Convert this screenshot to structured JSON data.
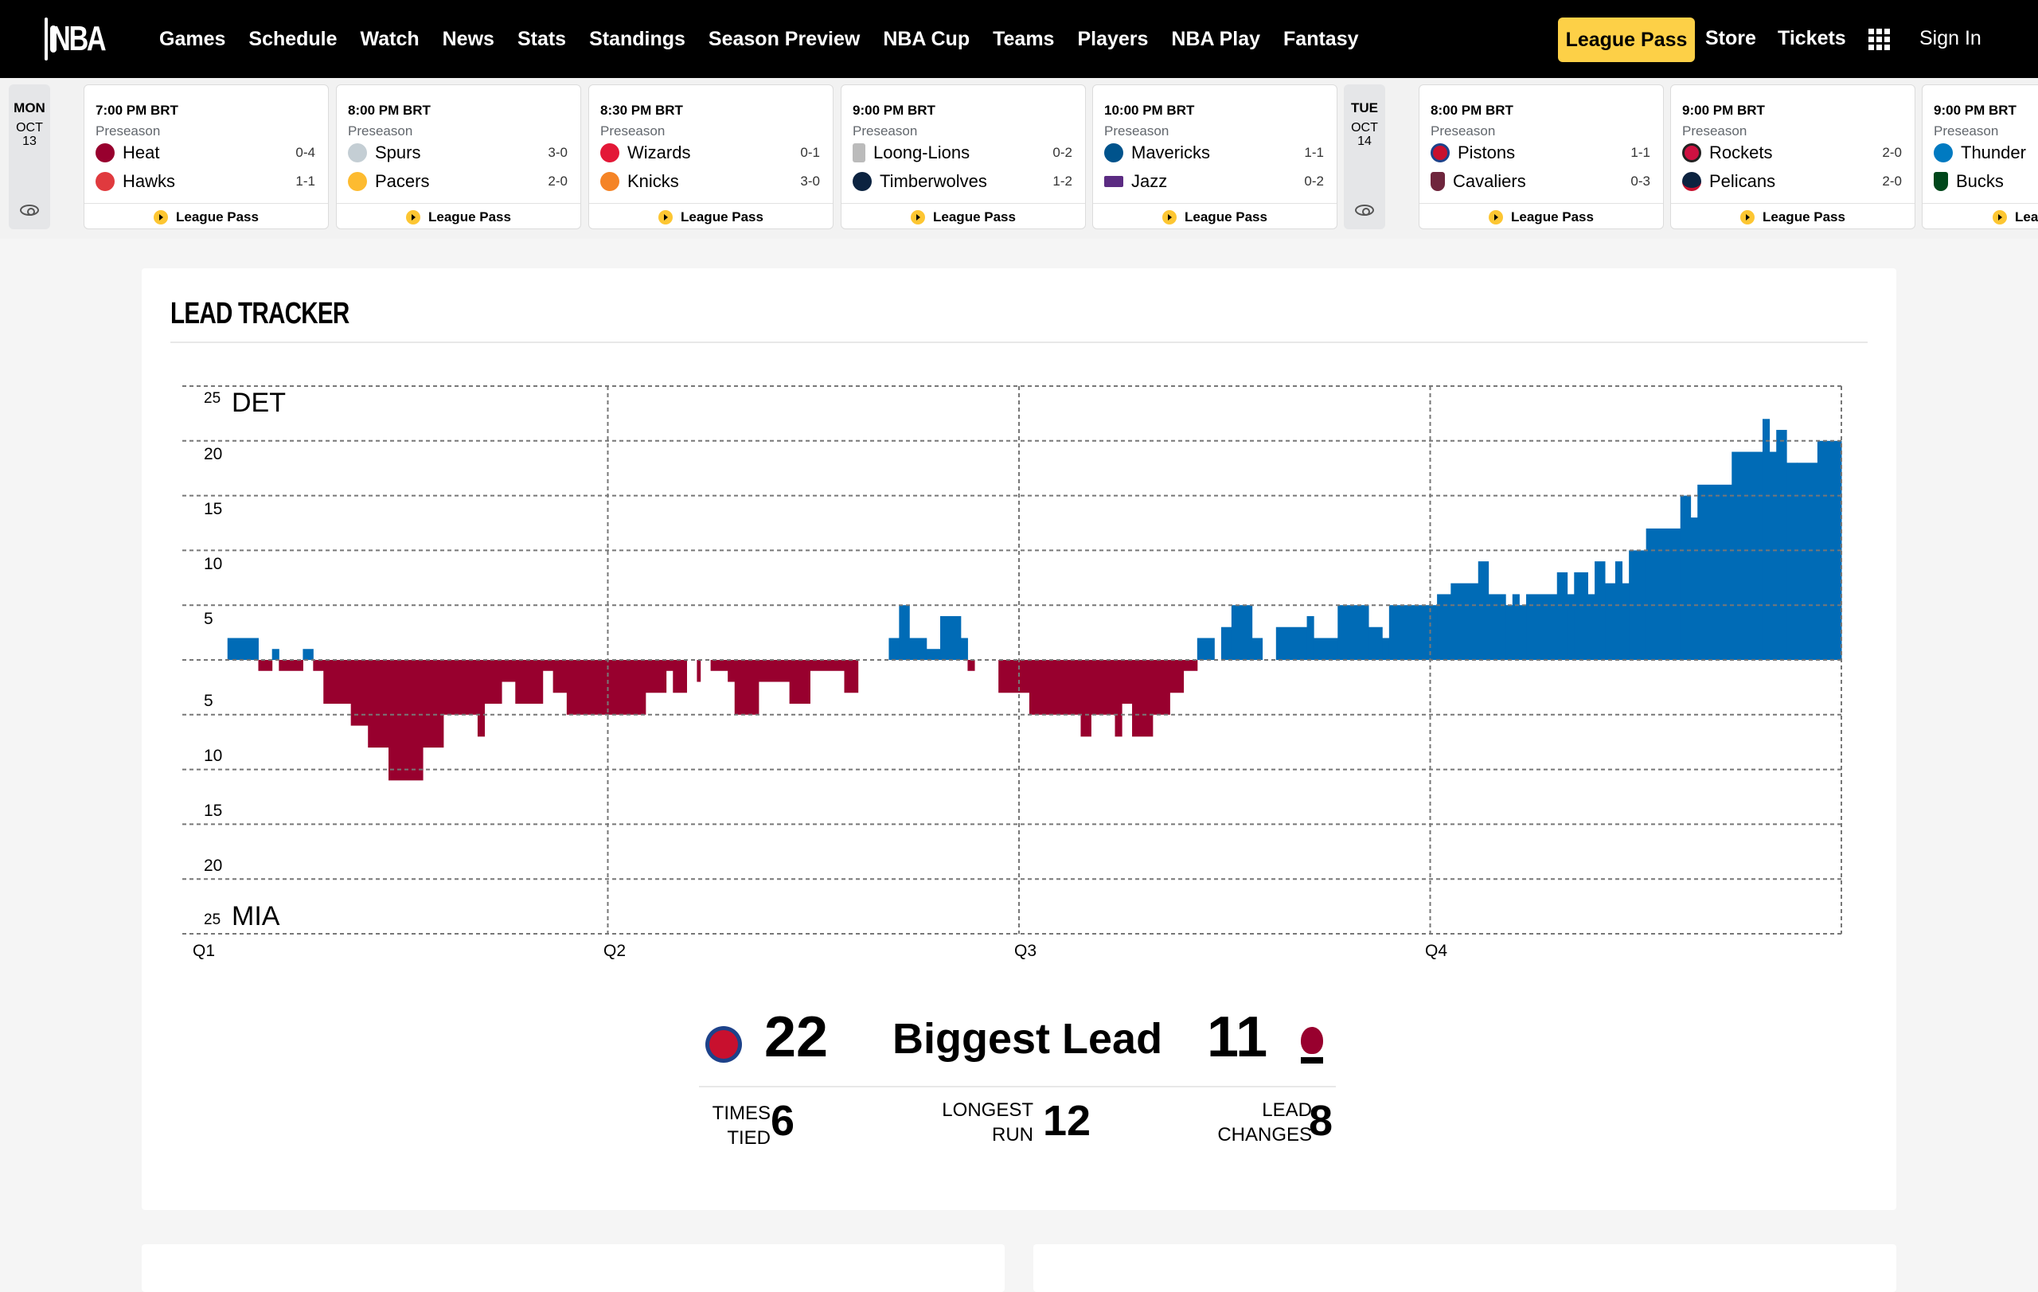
{
  "nav": {
    "logo": "NBA",
    "links": [
      "Games",
      "Schedule",
      "Watch",
      "News",
      "Stats",
      "Standings",
      "Season Preview",
      "NBA Cup",
      "Teams",
      "Players",
      "NBA Play",
      "Fantasy"
    ],
    "league_pass": "League Pass",
    "store": "Store",
    "tickets": "Tickets",
    "sign_in": "Sign In"
  },
  "schedule": {
    "days": [
      {
        "dow": "MON",
        "month": "OCT",
        "day": "13"
      },
      {
        "dow": "TUE",
        "month": "OCT",
        "day": "14"
      }
    ],
    "games": [
      {
        "time": "7:00 PM BRT",
        "type": "Preseason",
        "away": {
          "name": "Heat",
          "record": "0-4",
          "color": "#98002e"
        },
        "home": {
          "name": "Hawks",
          "record": "1-1",
          "color": "#e03a3e"
        },
        "cta": "League Pass"
      },
      {
        "time": "8:00 PM BRT",
        "type": "Preseason",
        "away": {
          "name": "Spurs",
          "record": "3-0",
          "color": "#c4ced4"
        },
        "home": {
          "name": "Pacers",
          "record": "2-0",
          "color": "#fdbb30"
        },
        "cta": "League Pass"
      },
      {
        "time": "8:30 PM BRT",
        "type": "Preseason",
        "away": {
          "name": "Wizards",
          "record": "0-1",
          "color": "#e31837"
        },
        "home": {
          "name": "Knicks",
          "record": "3-0",
          "color": "#f58426"
        },
        "cta": "League Pass"
      },
      {
        "time": "9:00 PM BRT",
        "type": "Preseason",
        "away": {
          "name": "Loong-Lions",
          "record": "0-2",
          "color": "#bbbbbb"
        },
        "home": {
          "name": "Timberwolves",
          "record": "1-2",
          "color": "#0c2340"
        },
        "cta": "League Pass"
      },
      {
        "time": "10:00 PM BRT",
        "type": "Preseason",
        "away": {
          "name": "Mavericks",
          "record": "1-1",
          "color": "#00538c"
        },
        "home": {
          "name": "Jazz",
          "record": "0-2",
          "color": "#5b2b82"
        },
        "cta": "League Pass"
      },
      {
        "time": "8:00 PM BRT",
        "type": "Preseason",
        "away": {
          "name": "Pistons",
          "record": "1-1",
          "color": "#c8102e"
        },
        "home": {
          "name": "Cavaliers",
          "record": "0-3",
          "color": "#6f263d"
        },
        "cta": "League Pass"
      },
      {
        "time": "9:00 PM BRT",
        "type": "Preseason",
        "away": {
          "name": "Rockets",
          "record": "2-0",
          "color": "#ce1141"
        },
        "home": {
          "name": "Pelicans",
          "record": "2-0",
          "color": "#0c2340"
        },
        "cta": "League Pass"
      },
      {
        "time": "9:00 PM BRT",
        "type": "Preseason",
        "away": {
          "name": "Thunder",
          "record": "",
          "color": "#007ac1"
        },
        "home": {
          "name": "Bucks",
          "record": "",
          "color": "#00471b"
        },
        "cta": "League Pass"
      }
    ]
  },
  "lead_tracker": {
    "title": "LEAD TRACKER",
    "top_team": "DET",
    "bottom_team": "MIA",
    "summary": {
      "det_biggest_lead": "22",
      "label": "Biggest Lead",
      "mia_biggest_lead": "11",
      "times_tied_label_1": "TIMES",
      "times_tied_label_2": "TIED",
      "times_tied": "6",
      "longest_run_label_1": "LONGEST",
      "longest_run_label_2": "RUN",
      "longest_run": "12",
      "lead_changes_label_1": "LEAD",
      "lead_changes_label_2": "CHANGES",
      "lead_changes": "8"
    }
  },
  "chart_data": {
    "type": "area",
    "title": "LEAD TRACKER",
    "xlabel": "",
    "ylabel": "",
    "x_ticks": [
      "Q1",
      "Q2",
      "Q3",
      "Q4"
    ],
    "y_ticks_top": [
      25,
      20,
      15,
      10,
      5
    ],
    "y_ticks_bottom": [
      5,
      10,
      15,
      20,
      25
    ],
    "ylim": [
      -25,
      25
    ],
    "xlim_minutes": [
      0,
      48
    ],
    "grid": true,
    "positive_team": "DET",
    "negative_team": "MIA",
    "colors": {
      "DET": "#006bb6",
      "MIA": "#98002e"
    },
    "segments_note": "each segment: [start_minute, end_minute, lead] (positive = DET lead, negative = MIA lead)",
    "segments": [
      [
        0.9,
        1.8,
        2
      ],
      [
        1.8,
        2.2,
        -1
      ],
      [
        2.2,
        2.4,
        1
      ],
      [
        2.4,
        3.1,
        -1
      ],
      [
        3.1,
        3.4,
        1
      ],
      [
        3.4,
        3.7,
        -1
      ],
      [
        3.7,
        4.5,
        -4
      ],
      [
        4.5,
        5.0,
        -6
      ],
      [
        5.0,
        5.6,
        -8
      ],
      [
        5.6,
        6.6,
        -11
      ],
      [
        6.6,
        7.2,
        -8
      ],
      [
        7.2,
        7.2,
        -5
      ],
      [
        7.2,
        8.2,
        -5
      ],
      [
        8.2,
        8.4,
        -7
      ],
      [
        8.4,
        8.9,
        -4
      ],
      [
        8.9,
        9.3,
        -2
      ],
      [
        9.3,
        10.1,
        -4
      ],
      [
        10.1,
        10.4,
        -1
      ],
      [
        10.4,
        10.8,
        -3
      ],
      [
        10.8,
        12.0,
        -5
      ],
      [
        12.0,
        13.1,
        -5
      ],
      [
        13.1,
        13.7,
        -3
      ],
      [
        13.7,
        13.9,
        -1
      ],
      [
        13.9,
        14.3,
        -3
      ],
      [
        14.3,
        14.6,
        0
      ],
      [
        14.6,
        14.7,
        -2
      ],
      [
        14.7,
        15.0,
        0
      ],
      [
        15.0,
        15.5,
        -1
      ],
      [
        15.5,
        15.7,
        -2
      ],
      [
        15.7,
        16.4,
        -5
      ],
      [
        16.4,
        17.3,
        -2
      ],
      [
        17.3,
        17.9,
        -4
      ],
      [
        17.9,
        18.9,
        -1
      ],
      [
        18.9,
        19.3,
        -3
      ],
      [
        19.3,
        20.2,
        0
      ],
      [
        20.2,
        20.5,
        2
      ],
      [
        20.5,
        20.8,
        5
      ],
      [
        20.8,
        21.3,
        2
      ],
      [
        21.3,
        21.7,
        1
      ],
      [
        21.7,
        22.3,
        4
      ],
      [
        22.3,
        22.5,
        2
      ],
      [
        22.5,
        22.7,
        -1
      ],
      [
        22.7,
        23.4,
        0
      ],
      [
        23.4,
        24.0,
        -3
      ],
      [
        24.0,
        24.3,
        -3
      ],
      [
        24.3,
        24.6,
        -5
      ],
      [
        24.6,
        25.8,
        -5
      ],
      [
        25.8,
        26.1,
        -7
      ],
      [
        26.1,
        26.8,
        -5
      ],
      [
        26.8,
        27.0,
        -7
      ],
      [
        27.0,
        27.3,
        -4
      ],
      [
        27.3,
        27.9,
        -7
      ],
      [
        27.9,
        28.4,
        -5
      ],
      [
        28.4,
        28.8,
        -3
      ],
      [
        28.8,
        29.2,
        -1
      ],
      [
        29.2,
        29.7,
        2
      ],
      [
        29.7,
        29.9,
        0
      ],
      [
        29.9,
        30.2,
        3
      ],
      [
        30.2,
        30.8,
        5
      ],
      [
        30.8,
        31.1,
        2
      ],
      [
        31.1,
        31.5,
        0
      ],
      [
        31.5,
        32.4,
        3
      ],
      [
        32.4,
        32.6,
        4
      ],
      [
        32.6,
        33.3,
        2
      ],
      [
        33.3,
        34.2,
        5
      ],
      [
        34.2,
        34.6,
        3
      ],
      [
        34.6,
        34.8,
        2
      ],
      [
        34.8,
        36.0,
        5
      ],
      [
        36.0,
        36.2,
        5
      ],
      [
        36.2,
        36.6,
        6
      ],
      [
        36.6,
        37.4,
        7
      ],
      [
        37.4,
        37.7,
        9
      ],
      [
        37.7,
        38.2,
        6
      ],
      [
        38.2,
        38.4,
        5
      ],
      [
        38.4,
        38.6,
        6
      ],
      [
        38.6,
        38.8,
        5
      ],
      [
        38.8,
        39.7,
        6
      ],
      [
        39.7,
        40.0,
        8
      ],
      [
        40.0,
        40.2,
        6
      ],
      [
        40.2,
        40.6,
        8
      ],
      [
        40.6,
        40.8,
        6
      ],
      [
        40.8,
        41.1,
        9
      ],
      [
        41.1,
        41.4,
        7
      ],
      [
        41.4,
        41.6,
        9
      ],
      [
        41.6,
        41.8,
        7
      ],
      [
        41.8,
        42.3,
        10
      ],
      [
        42.3,
        43.3,
        12
      ],
      [
        43.3,
        43.6,
        15
      ],
      [
        43.6,
        43.8,
        13
      ],
      [
        43.8,
        44.8,
        16
      ],
      [
        44.8,
        45.7,
        19
      ],
      [
        45.7,
        45.9,
        22
      ],
      [
        45.9,
        46.1,
        19
      ],
      [
        46.1,
        46.4,
        21
      ],
      [
        46.4,
        46.7,
        18
      ],
      [
        46.7,
        47.3,
        18
      ],
      [
        47.3,
        48.0,
        20
      ]
    ],
    "summary": {
      "DET_biggest_lead": 22,
      "MIA_biggest_lead": 11,
      "times_tied": 6,
      "longest_run": 12,
      "lead_changes": 8
    }
  },
  "colors": {
    "det": "#006bb6",
    "mia": "#98002e",
    "league_pass_yellow": "#fdd047",
    "nav_bg": "#000000"
  }
}
